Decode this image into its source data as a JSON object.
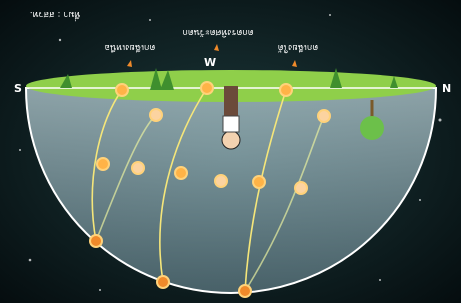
{
  "labels": {
    "south": "S",
    "north": "N",
    "west": "W",
    "left_path": "ตกเฉียงเหนือ",
    "middle_path": "ตกตรงทิศตะวันตก",
    "right_path": "ตกเฉียงใต้",
    "credit": "ที่มา : สสวท."
  }
}
